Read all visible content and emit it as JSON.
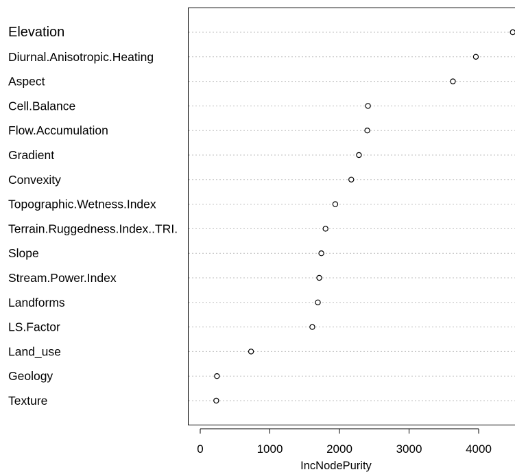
{
  "chart_data": {
    "type": "scatter",
    "orientation": "horizontal-dotchart",
    "xlabel": "IncNodePurity",
    "xlim": [
      -90,
      4520
    ],
    "xticks": [
      0,
      1000,
      2000,
      3000,
      4000
    ],
    "grid": true,
    "categories": [
      "Elevation",
      "Diurnal.Anisotropic.Heating",
      "Aspect",
      "Cell.Balance",
      "Flow.Accumulation",
      "Gradient",
      "Convexity",
      "Topographic.Wetness.Index",
      "Terrain.Ruggedness.Index..TRI.",
      "Slope",
      "Stream.Power.Index",
      "Landforms",
      "LS.Factor",
      "Land_use",
      "Geology",
      "Texture"
    ],
    "values": [
      4490,
      3960,
      3630,
      2410,
      2400,
      2280,
      2170,
      1940,
      1800,
      1740,
      1710,
      1690,
      1610,
      730,
      240,
      230
    ]
  }
}
